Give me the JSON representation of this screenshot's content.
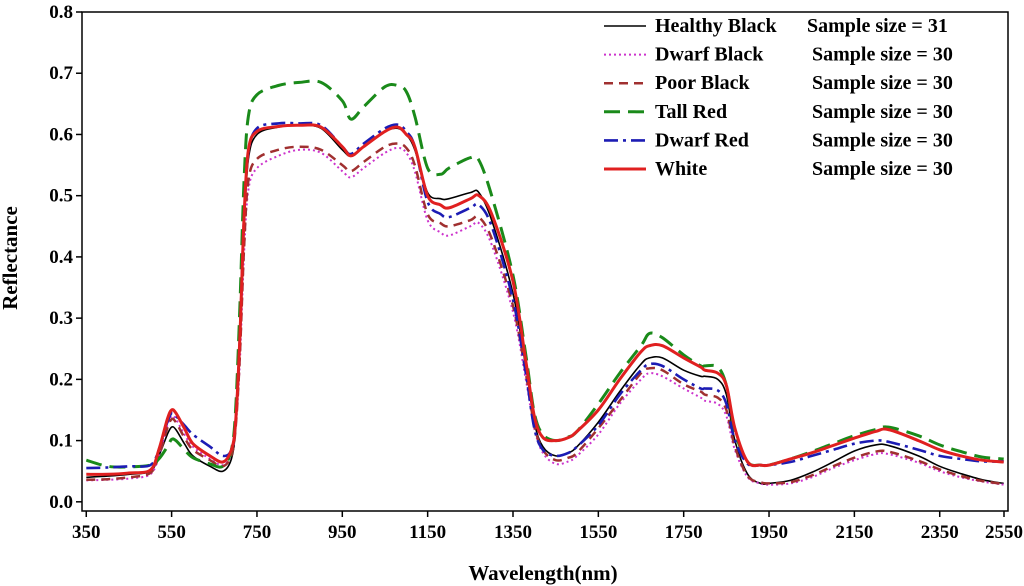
{
  "chart_data": {
    "type": "line",
    "xlabel": "Wavelength(nm)",
    "ylabel": "Reflectance",
    "xlim": [
      340,
      2510
    ],
    "ylim": [
      -0.015,
      0.8
    ],
    "xticks": [
      350,
      550,
      750,
      950,
      1150,
      1350,
      1550,
      1750,
      1950,
      2150,
      2350,
      2550
    ],
    "xtick_labels": [
      "350",
      "550",
      "750",
      "950",
      "1150",
      "1350",
      "1550",
      "1750",
      "1950",
      "2150",
      "2350",
      "2550"
    ],
    "yticks": [
      0.0,
      0.1,
      0.2,
      0.3,
      0.4,
      0.5,
      0.6,
      0.7,
      0.8
    ],
    "ytick_labels": [
      "0.0",
      "0.1",
      "0.2",
      "0.3",
      "0.4",
      "0.5",
      "0.6",
      "0.7",
      "0.8"
    ],
    "legend_position": "top-right",
    "series": [
      {
        "name": "Healthy Black",
        "sample_size_label": "Sample size = 31",
        "color": "#000000",
        "dash": "solid",
        "x": [
          350,
          400,
          450,
          500,
          520,
          540,
          550,
          560,
          580,
          600,
          640,
          670,
          690,
          700,
          710,
          720,
          730,
          750,
          800,
          850,
          900,
          950,
          970,
          1000,
          1050,
          1080,
          1100,
          1120,
          1150,
          1180,
          1200,
          1250,
          1270,
          1300,
          1350,
          1380,
          1400,
          1420,
          1450,
          1480,
          1500,
          1550,
          1600,
          1650,
          1670,
          1700,
          1750,
          1790,
          1800,
          1830,
          1850,
          1870,
          1900,
          1930,
          1950,
          2000,
          2050,
          2100,
          2150,
          2200,
          2230,
          2300,
          2350,
          2400,
          2450,
          2500
        ],
        "values": [
          0.04,
          0.042,
          0.045,
          0.05,
          0.075,
          0.11,
          0.122,
          0.118,
          0.095,
          0.075,
          0.058,
          0.05,
          0.07,
          0.12,
          0.25,
          0.45,
          0.56,
          0.6,
          0.612,
          0.615,
          0.61,
          0.575,
          0.565,
          0.58,
          0.605,
          0.61,
          0.6,
          0.575,
          0.505,
          0.495,
          0.495,
          0.505,
          0.505,
          0.46,
          0.34,
          0.22,
          0.13,
          0.09,
          0.075,
          0.08,
          0.09,
          0.13,
          0.18,
          0.225,
          0.235,
          0.235,
          0.215,
          0.205,
          0.205,
          0.2,
          0.175,
          0.1,
          0.045,
          0.03,
          0.03,
          0.035,
          0.048,
          0.065,
          0.083,
          0.093,
          0.092,
          0.075,
          0.058,
          0.046,
          0.036,
          0.03
        ]
      },
      {
        "name": "Dwarf Black",
        "sample_size_label": "Sample size = 30",
        "color": "#cc33cc",
        "dash": "dotted",
        "x": [
          350,
          400,
          450,
          500,
          520,
          540,
          550,
          560,
          580,
          600,
          640,
          670,
          690,
          700,
          710,
          720,
          730,
          750,
          800,
          850,
          900,
          950,
          970,
          1000,
          1050,
          1080,
          1100,
          1120,
          1150,
          1180,
          1200,
          1250,
          1270,
          1300,
          1350,
          1380,
          1400,
          1420,
          1450,
          1480,
          1500,
          1550,
          1600,
          1650,
          1670,
          1700,
          1750,
          1790,
          1800,
          1830,
          1850,
          1870,
          1900,
          1930,
          1950,
          2000,
          2050,
          2100,
          2150,
          2200,
          2230,
          2300,
          2350,
          2400,
          2450,
          2500
        ],
        "values": [
          0.035,
          0.036,
          0.038,
          0.045,
          0.075,
          0.125,
          0.14,
          0.135,
          0.11,
          0.09,
          0.07,
          0.06,
          0.078,
          0.12,
          0.23,
          0.41,
          0.51,
          0.545,
          0.565,
          0.575,
          0.57,
          0.54,
          0.53,
          0.545,
          0.57,
          0.578,
          0.57,
          0.54,
          0.46,
          0.44,
          0.435,
          0.45,
          0.455,
          0.42,
          0.31,
          0.2,
          0.12,
          0.08,
          0.062,
          0.066,
          0.075,
          0.11,
          0.16,
          0.2,
          0.21,
          0.205,
          0.185,
          0.17,
          0.165,
          0.16,
          0.14,
          0.085,
          0.04,
          0.03,
          0.028,
          0.03,
          0.04,
          0.055,
          0.068,
          0.078,
          0.078,
          0.064,
          0.05,
          0.04,
          0.033,
          0.028
        ]
      },
      {
        "name": "Poor Black",
        "sample_size_label": "Sample size = 30",
        "color": "#a03030",
        "dash": "dashed",
        "x": [
          350,
          400,
          450,
          500,
          520,
          540,
          550,
          560,
          580,
          600,
          640,
          670,
          690,
          700,
          710,
          720,
          730,
          750,
          800,
          850,
          900,
          950,
          970,
          1000,
          1050,
          1080,
          1100,
          1120,
          1150,
          1180,
          1200,
          1250,
          1270,
          1300,
          1350,
          1380,
          1400,
          1420,
          1450,
          1480,
          1500,
          1550,
          1600,
          1650,
          1670,
          1700,
          1750,
          1790,
          1800,
          1830,
          1850,
          1870,
          1900,
          1930,
          1950,
          2000,
          2050,
          2100,
          2150,
          2200,
          2230,
          2300,
          2350,
          2400,
          2450,
          2500
        ],
        "values": [
          0.036,
          0.037,
          0.04,
          0.047,
          0.075,
          0.12,
          0.135,
          0.13,
          0.105,
          0.085,
          0.068,
          0.058,
          0.076,
          0.12,
          0.24,
          0.42,
          0.525,
          0.56,
          0.575,
          0.58,
          0.575,
          0.55,
          0.54,
          0.555,
          0.58,
          0.585,
          0.578,
          0.55,
          0.47,
          0.455,
          0.45,
          0.46,
          0.465,
          0.43,
          0.32,
          0.21,
          0.125,
          0.085,
          0.068,
          0.072,
          0.08,
          0.12,
          0.165,
          0.21,
          0.218,
          0.215,
          0.192,
          0.18,
          0.175,
          0.17,
          0.15,
          0.09,
          0.042,
          0.032,
          0.03,
          0.032,
          0.043,
          0.058,
          0.072,
          0.082,
          0.082,
          0.067,
          0.053,
          0.042,
          0.034,
          0.029
        ]
      },
      {
        "name": "Tall Red",
        "sample_size_label": "Sample size = 30",
        "color": "#1a8a1a",
        "dash": "longdash",
        "x": [
          350,
          400,
          450,
          500,
          520,
          540,
          550,
          560,
          580,
          600,
          640,
          670,
          690,
          700,
          710,
          720,
          730,
          750,
          800,
          850,
          900,
          950,
          970,
          1000,
          1050,
          1080,
          1100,
          1120,
          1150,
          1180,
          1200,
          1250,
          1270,
          1300,
          1350,
          1380,
          1400,
          1420,
          1450,
          1480,
          1500,
          1550,
          1600,
          1650,
          1670,
          1700,
          1750,
          1790,
          1800,
          1830,
          1850,
          1870,
          1900,
          1930,
          1950,
          2000,
          2050,
          2100,
          2150,
          2200,
          2230,
          2300,
          2350,
          2400,
          2450,
          2500
        ],
        "values": [
          0.068,
          0.058,
          0.057,
          0.06,
          0.07,
          0.09,
          0.102,
          0.1,
          0.085,
          0.072,
          0.062,
          0.058,
          0.085,
          0.15,
          0.32,
          0.53,
          0.63,
          0.665,
          0.68,
          0.685,
          0.685,
          0.655,
          0.625,
          0.645,
          0.678,
          0.68,
          0.67,
          0.63,
          0.545,
          0.535,
          0.545,
          0.562,
          0.558,
          0.5,
          0.37,
          0.24,
          0.145,
          0.11,
          0.1,
          0.106,
          0.115,
          0.16,
          0.21,
          0.255,
          0.275,
          0.268,
          0.24,
          0.222,
          0.222,
          0.22,
          0.19,
          0.115,
          0.065,
          0.06,
          0.06,
          0.07,
          0.082,
          0.095,
          0.108,
          0.118,
          0.122,
          0.108,
          0.093,
          0.082,
          0.073,
          0.07
        ]
      },
      {
        "name": "Dwarf Red",
        "sample_size_label": "Sample size = 30",
        "color": "#1c1cb4",
        "dash": "dashdot",
        "x": [
          350,
          400,
          450,
          500,
          520,
          540,
          550,
          560,
          580,
          600,
          640,
          670,
          690,
          700,
          710,
          720,
          730,
          750,
          800,
          850,
          900,
          950,
          970,
          1000,
          1050,
          1080,
          1100,
          1120,
          1150,
          1180,
          1200,
          1250,
          1270,
          1300,
          1350,
          1380,
          1400,
          1420,
          1450,
          1480,
          1500,
          1550,
          1600,
          1650,
          1670,
          1700,
          1750,
          1790,
          1800,
          1830,
          1850,
          1870,
          1900,
          1930,
          1950,
          2000,
          2050,
          2100,
          2150,
          2200,
          2230,
          2300,
          2350,
          2400,
          2450,
          2500
        ],
        "values": [
          0.055,
          0.056,
          0.058,
          0.06,
          0.085,
          0.13,
          0.145,
          0.14,
          0.125,
          0.11,
          0.09,
          0.075,
          0.085,
          0.13,
          0.27,
          0.47,
          0.57,
          0.61,
          0.618,
          0.618,
          0.615,
          0.58,
          0.568,
          0.585,
          0.61,
          0.616,
          0.605,
          0.58,
          0.49,
          0.47,
          0.465,
          0.48,
          0.485,
          0.45,
          0.33,
          0.21,
          0.12,
          0.085,
          0.075,
          0.08,
          0.09,
          0.125,
          0.175,
          0.215,
          0.225,
          0.222,
          0.2,
          0.185,
          0.185,
          0.182,
          0.16,
          0.1,
          0.062,
          0.06,
          0.06,
          0.065,
          0.075,
          0.085,
          0.095,
          0.1,
          0.098,
          0.085,
          0.075,
          0.07,
          0.066,
          0.066
        ]
      },
      {
        "name": "White",
        "sample_size_label": "Sample size = 30",
        "color": "#e02020",
        "dash": "solid",
        "x": [
          350,
          400,
          450,
          500,
          520,
          540,
          550,
          560,
          580,
          600,
          640,
          670,
          690,
          700,
          710,
          720,
          730,
          750,
          800,
          850,
          900,
          950,
          970,
          1000,
          1050,
          1080,
          1100,
          1120,
          1150,
          1180,
          1200,
          1250,
          1270,
          1300,
          1350,
          1380,
          1400,
          1420,
          1450,
          1480,
          1500,
          1550,
          1600,
          1650,
          1670,
          1700,
          1750,
          1790,
          1800,
          1830,
          1850,
          1870,
          1900,
          1930,
          1950,
          2000,
          2050,
          2100,
          2150,
          2200,
          2230,
          2300,
          2350,
          2400,
          2450,
          2500
        ],
        "values": [
          0.045,
          0.045,
          0.047,
          0.052,
          0.085,
          0.135,
          0.15,
          0.145,
          0.12,
          0.095,
          0.075,
          0.065,
          0.085,
          0.13,
          0.27,
          0.47,
          0.575,
          0.605,
          0.613,
          0.615,
          0.612,
          0.58,
          0.565,
          0.58,
          0.605,
          0.612,
          0.6,
          0.58,
          0.5,
          0.485,
          0.48,
          0.495,
          0.5,
          0.47,
          0.36,
          0.23,
          0.14,
          0.105,
          0.1,
          0.105,
          0.115,
          0.15,
          0.2,
          0.245,
          0.255,
          0.255,
          0.235,
          0.22,
          0.215,
          0.21,
          0.19,
          0.12,
          0.065,
          0.06,
          0.06,
          0.07,
          0.08,
          0.092,
          0.104,
          0.115,
          0.118,
          0.1,
          0.085,
          0.075,
          0.068,
          0.065
        ]
      }
    ]
  }
}
